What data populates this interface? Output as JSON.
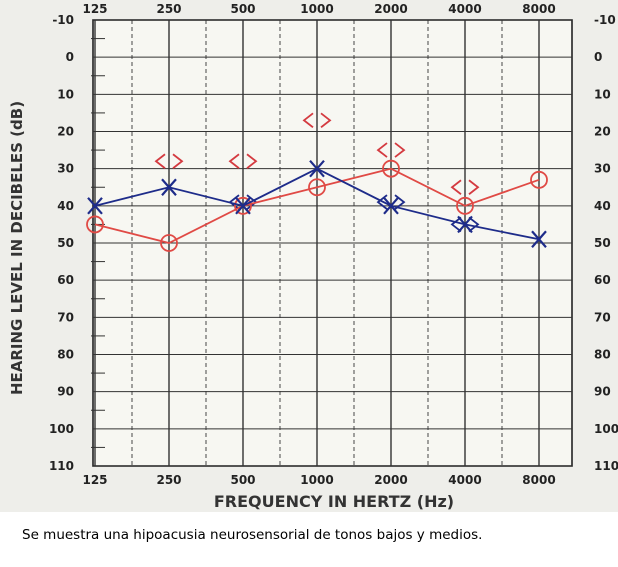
{
  "chart_data": {
    "type": "line",
    "title": "",
    "xlabel": "FREQUENCY IN HERTZ (Hz)",
    "ylabel": "HEARING LEVEL IN DECIBELES (dB)",
    "x": [
      125,
      250,
      500,
      1000,
      2000,
      4000,
      8000
    ],
    "x_tick_labels": [
      "125",
      "250",
      "500",
      "1000",
      "2000",
      "4000",
      "8000"
    ],
    "y_tick_labels": [
      "-10",
      "0",
      "10",
      "20",
      "30",
      "40",
      "50",
      "60",
      "70",
      "80",
      "90",
      "100",
      "110"
    ],
    "x_scale": "log2",
    "ylim": [
      -10,
      110
    ],
    "y_inverted": true,
    "grid": true,
    "series": [
      {
        "values": [
          45,
          50,
          40,
          35,
          30,
          40,
          33
        ],
        "color": "#e04a45",
        "marker": "circle"
      },
      {
        "values": [
          40,
          35,
          40,
          30,
          40,
          45,
          49
        ],
        "color": "#1e2c8a",
        "marker": "x"
      }
    ],
    "bone_conduction": [
      {
        "x": 250,
        "y": 28,
        "color": "#d43a40"
      },
      {
        "x": 500,
        "y": 28,
        "color": "#d43a40"
      },
      {
        "x": 1000,
        "y": 17,
        "color": "#d43a40"
      },
      {
        "x": 2000,
        "y": 25,
        "color": "#d43a40"
      },
      {
        "x": 4000,
        "y": 35,
        "color": "#d43a40"
      },
      {
        "x": 500,
        "y": 39,
        "color": "#1e2c8a"
      },
      {
        "x": 2000,
        "y": 39,
        "color": "#1e2c8a"
      },
      {
        "x": 4000,
        "y": 45,
        "color": "#1e2c8a"
      }
    ]
  },
  "caption": "Se muestra una hipoacusia neurosensorial de tonos bajos y medios."
}
